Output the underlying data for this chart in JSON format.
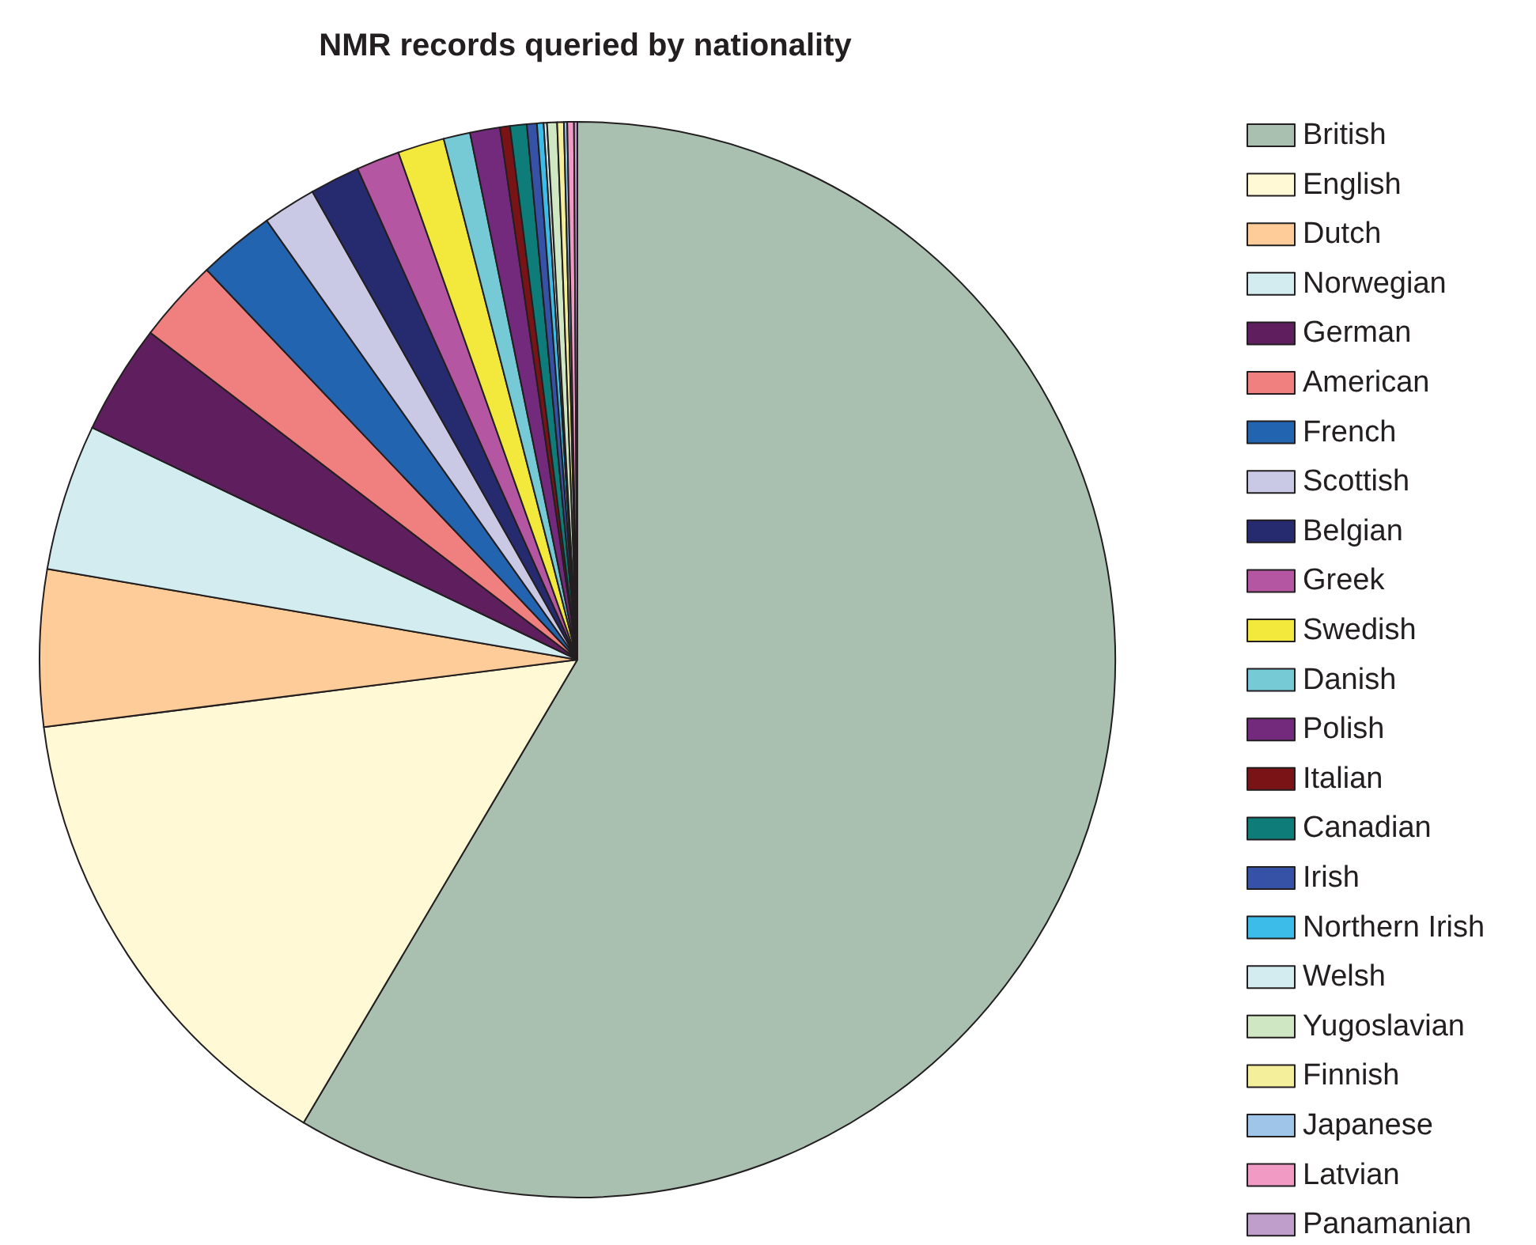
{
  "chart_data": {
    "type": "pie",
    "title": "NMR records queried by nationality",
    "legend": "right",
    "categories": [
      "British",
      "English",
      "Dutch",
      "Norwegian",
      "German",
      "American",
      "French",
      "Scottish",
      "Belgian",
      "Greek",
      "Swedish",
      "Danish",
      "Polish",
      "Italian",
      "Canadian",
      "Irish",
      "Northern Irish",
      "Welsh",
      "Yugoslavian",
      "Finnish",
      "Japanese",
      "Latvian",
      "Panamanian"
    ],
    "values": [
      58.5,
      14.5,
      4.7,
      4.4,
      3.3,
      2.5,
      2.3,
      1.6,
      1.5,
      1.3,
      1.4,
      0.8,
      0.9,
      0.3,
      0.5,
      0.3,
      0.2,
      0.1,
      0.3,
      0.2,
      0.1,
      0.2,
      0.1
    ],
    "colors": [
      "#a9bfb0",
      "#fff9d6",
      "#fdcc98",
      "#d2ecef",
      "#5f1f5f",
      "#f07f7f",
      "#2364b0",
      "#c9c9e6",
      "#262a6e",
      "#b556a2",
      "#f2e93c",
      "#76cad6",
      "#732a7c",
      "#7a1316",
      "#0e7c78",
      "#3552a6",
      "#3cbce8",
      "#d3ecef",
      "#cfe8c3",
      "#f4ef9b",
      "#9fc5e8",
      "#f19bc4",
      "#c09ecb"
    ]
  }
}
